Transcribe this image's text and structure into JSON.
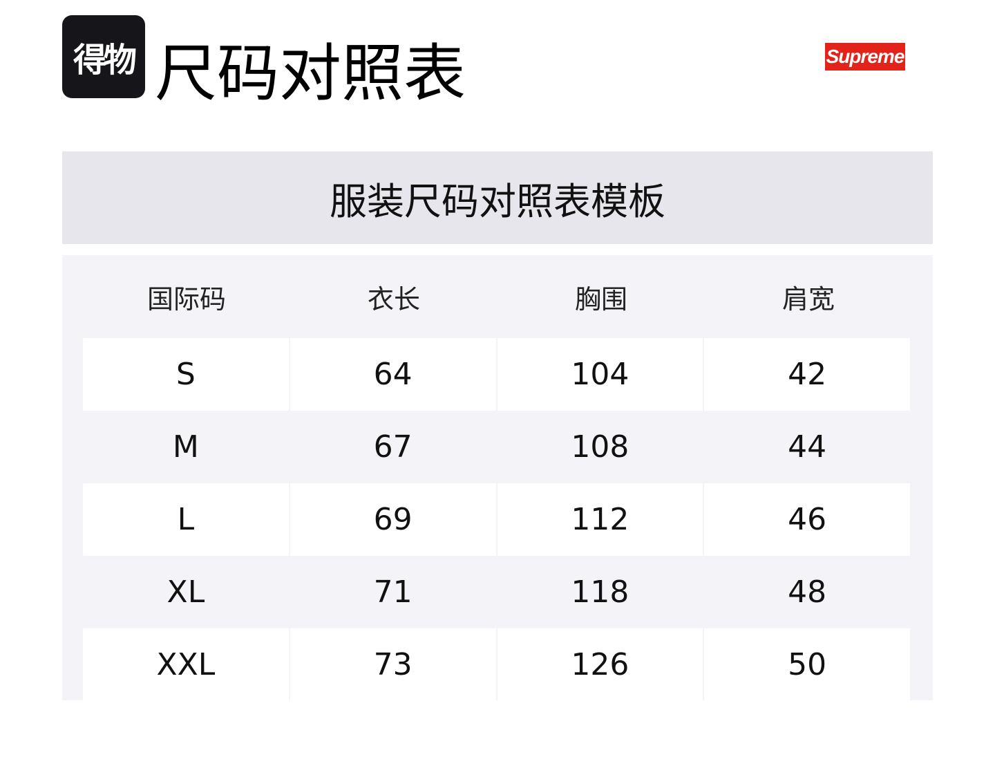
{
  "header": {
    "logo_text": "得物",
    "title": "尺码对照表",
    "brand_logo": "Supreme",
    "brand_color": "#e2231a"
  },
  "table": {
    "caption": "服装尺码对照表模板",
    "columns": [
      "国际码",
      "衣长",
      "胸围",
      "肩宽"
    ],
    "rows": [
      [
        "S",
        "64",
        "104",
        "42"
      ],
      [
        "M",
        "67",
        "108",
        "44"
      ],
      [
        "L",
        "69",
        "112",
        "46"
      ],
      [
        "XL",
        "71",
        "118",
        "48"
      ],
      [
        "XXL",
        "73",
        "126",
        "50"
      ]
    ]
  }
}
